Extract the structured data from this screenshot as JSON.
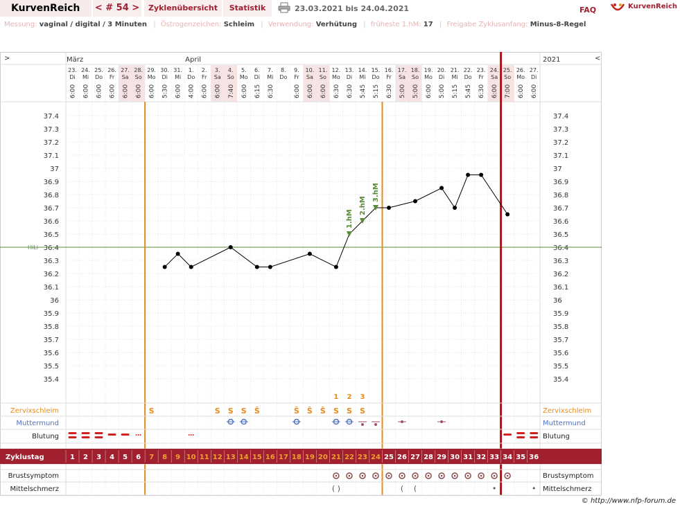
{
  "header": {
    "brand": "KurvenReich",
    "cycle_nav": "< # 54 >",
    "tabs": [
      "Zyklenübersicht",
      "Statistik"
    ],
    "date_range": "23.03.2021 bis 24.04.2021",
    "faq": "FAQ",
    "logo_text": "KurvenReich",
    "printer_icon": "printer-icon"
  },
  "info": [
    {
      "label": "Messung:",
      "value": "vaginal / digital / 3 Minuten"
    },
    {
      "label": "Östrogenzeichen:",
      "value": "Schleim"
    },
    {
      "label": "Verwendung:",
      "value": "Verhütung"
    },
    {
      "label": "früheste 1.hM:",
      "value": "17"
    },
    {
      "label": "Freigabe Zyklusanfang:",
      "value": "Minus-8-Regel"
    }
  ],
  "nav": {
    "left_arrow": ">",
    "right_arrow": "<",
    "month1": "März",
    "month2": "April",
    "year": "2021"
  },
  "colors": {
    "accent": "#a02030",
    "orange": "#e88a1a",
    "red_line": "#cc0000",
    "hil": "#5a8a3a",
    "blue": "#5070c0",
    "pinkfill": "#f6e4e4"
  },
  "days": [
    {
      "date": "23.",
      "wd": "Di",
      "time": "6:00",
      "we": false
    },
    {
      "date": "24.",
      "wd": "Mi",
      "time": "6:00",
      "we": false
    },
    {
      "date": "25.",
      "wd": "Do",
      "time": "6:00",
      "we": false
    },
    {
      "date": "26.",
      "wd": "Fr",
      "time": "6:00",
      "we": false
    },
    {
      "date": "27.",
      "wd": "Sa",
      "time": "6:00",
      "we": true
    },
    {
      "date": "28.",
      "wd": "So",
      "time": "6:00",
      "we": true
    },
    {
      "date": "29.",
      "wd": "Mo",
      "time": "6:00",
      "we": false
    },
    {
      "date": "30.",
      "wd": "Di",
      "time": "5:30",
      "we": false
    },
    {
      "date": "31.",
      "wd": "Mi",
      "time": "6:00",
      "we": false
    },
    {
      "date": "1.",
      "wd": "Do",
      "time": "4:00",
      "we": false
    },
    {
      "date": "2.",
      "wd": "Fr",
      "time": "6:00",
      "we": false
    },
    {
      "date": "3.",
      "wd": "Sa",
      "time": "6:00",
      "we": true
    },
    {
      "date": "4.",
      "wd": "So",
      "time": "7:40",
      "we": true
    },
    {
      "date": "5.",
      "wd": "Mo",
      "time": "6:00",
      "we": false
    },
    {
      "date": "6.",
      "wd": "Di",
      "time": "6:15",
      "we": false
    },
    {
      "date": "7.",
      "wd": "Mi",
      "time": "6:30",
      "we": false
    },
    {
      "date": "8.",
      "wd": "Do",
      "time": "",
      "we": false
    },
    {
      "date": "9.",
      "wd": "Fr",
      "time": "6:00",
      "we": false
    },
    {
      "date": "10.",
      "wd": "Sa",
      "time": "6:00",
      "we": true
    },
    {
      "date": "11.",
      "wd": "So",
      "time": "6:00",
      "we": true
    },
    {
      "date": "12.",
      "wd": "Mo",
      "time": "6:30",
      "we": false
    },
    {
      "date": "13.",
      "wd": "Di",
      "time": "6:30",
      "we": false
    },
    {
      "date": "14.",
      "wd": "Mi",
      "time": "5:45",
      "we": false
    },
    {
      "date": "15.",
      "wd": "Do",
      "time": "5:15",
      "we": false
    },
    {
      "date": "16.",
      "wd": "Fr",
      "time": "6:30",
      "we": false
    },
    {
      "date": "17.",
      "wd": "Sa",
      "time": "5:00",
      "we": true
    },
    {
      "date": "18.",
      "wd": "So",
      "time": "5:00",
      "we": true
    },
    {
      "date": "19.",
      "wd": "Mo",
      "time": "6:00",
      "we": false
    },
    {
      "date": "20.",
      "wd": "Di",
      "time": "5:00",
      "we": false
    },
    {
      "date": "21.",
      "wd": "Mi",
      "time": "5:15",
      "we": false
    },
    {
      "date": "22.",
      "wd": "Do",
      "time": "5:45",
      "we": false
    },
    {
      "date": "23.",
      "wd": "Fr",
      "time": "6:30",
      "we": false
    },
    {
      "date": "24.",
      "wd": "Sa",
      "time": "6:00",
      "we": true
    },
    {
      "date": "25.",
      "wd": "So",
      "time": "7:00",
      "we": true
    },
    {
      "date": "26.",
      "wd": "Mo",
      "time": "6:00",
      "we": false
    },
    {
      "date": "27.",
      "wd": "Di",
      "time": "6:00",
      "we": false
    }
  ],
  "ytick_labels": [
    "37.4",
    "37.3",
    "37.2",
    "37.1",
    "37",
    "36.9",
    "36.8",
    "36.7",
    "36.6",
    "36.5",
    "36.4",
    "36.3",
    "36.2",
    "36.1",
    "36",
    "35.9",
    "35.8",
    "35.7",
    "35.6",
    "35.5",
    "35.4"
  ],
  "hil_label": "HiLi",
  "hil_value": 36.4,
  "hm_labels": [
    "1.hM",
    "2.hM",
    "3.hM"
  ],
  "hm_days": [
    21,
    22,
    23
  ],
  "temps": [
    null,
    null,
    null,
    null,
    null,
    null,
    null,
    36.25,
    36.35,
    36.25,
    null,
    null,
    36.4,
    null,
    36.25,
    36.25,
    null,
    null,
    36.35,
    null,
    36.25,
    36.5,
    36.6,
    36.7,
    36.7,
    null,
    36.75,
    null,
    36.85,
    36.7,
    36.95,
    36.95,
    null,
    36.65,
    null,
    null
  ],
  "rows": {
    "zervix": "Zervixschleim",
    "muttermund": "Muttermund",
    "blutung": "Blutung",
    "zyklustag": "Zyklustag",
    "brust": "Brustsymptom",
    "mittel": "Mittelschmerz"
  },
  "zervix_marks": [
    "",
    "",
    "",
    "",
    "",
    "",
    "S",
    "",
    "",
    "",
    "",
    "S",
    "S",
    "S",
    "Ŝ",
    "",
    "",
    "Ŝ",
    "Ŝ",
    "Ŝ",
    "S",
    "S",
    "S",
    "",
    "",
    "",
    "",
    "",
    "",
    "",
    "",
    "",
    "",
    "",
    "",
    ""
  ],
  "peak_numbers": {
    "20": "1",
    "21": "2",
    "22": "3"
  },
  "muttermund_days": [
    12,
    13,
    17,
    20,
    21
  ],
  "muttermund_dots": [
    22,
    23,
    25,
    28
  ],
  "blutung": [
    3,
    3,
    3,
    2,
    2,
    1,
    0,
    0,
    0,
    1,
    0,
    0,
    0,
    0,
    0,
    0,
    0,
    0,
    0,
    0,
    0,
    0,
    0,
    0,
    0,
    0,
    0,
    0,
    0,
    0,
    0,
    0,
    0,
    2,
    3,
    3
  ],
  "brust_days": [
    20,
    21,
    22,
    23,
    24,
    25,
    26,
    27,
    28,
    29,
    30,
    31,
    32,
    33
  ],
  "mittel_marks": {
    "20": "( )",
    "25": "(",
    "26": "(",
    "32": "•",
    "35": "•"
  },
  "cycle_days": [
    "1",
    "2",
    "3",
    "4",
    "5",
    "6",
    "7",
    "8",
    "9",
    "10",
    "11",
    "12",
    "13",
    "14",
    "15",
    "16",
    "17",
    "18",
    "19",
    "20",
    "21",
    "22",
    "23",
    "24",
    "25",
    "26",
    "27",
    "28",
    "29",
    "30",
    "31",
    "32",
    "33",
    "34",
    "35",
    "36"
  ],
  "footer": "© http://www.nfp-forum.de"
}
